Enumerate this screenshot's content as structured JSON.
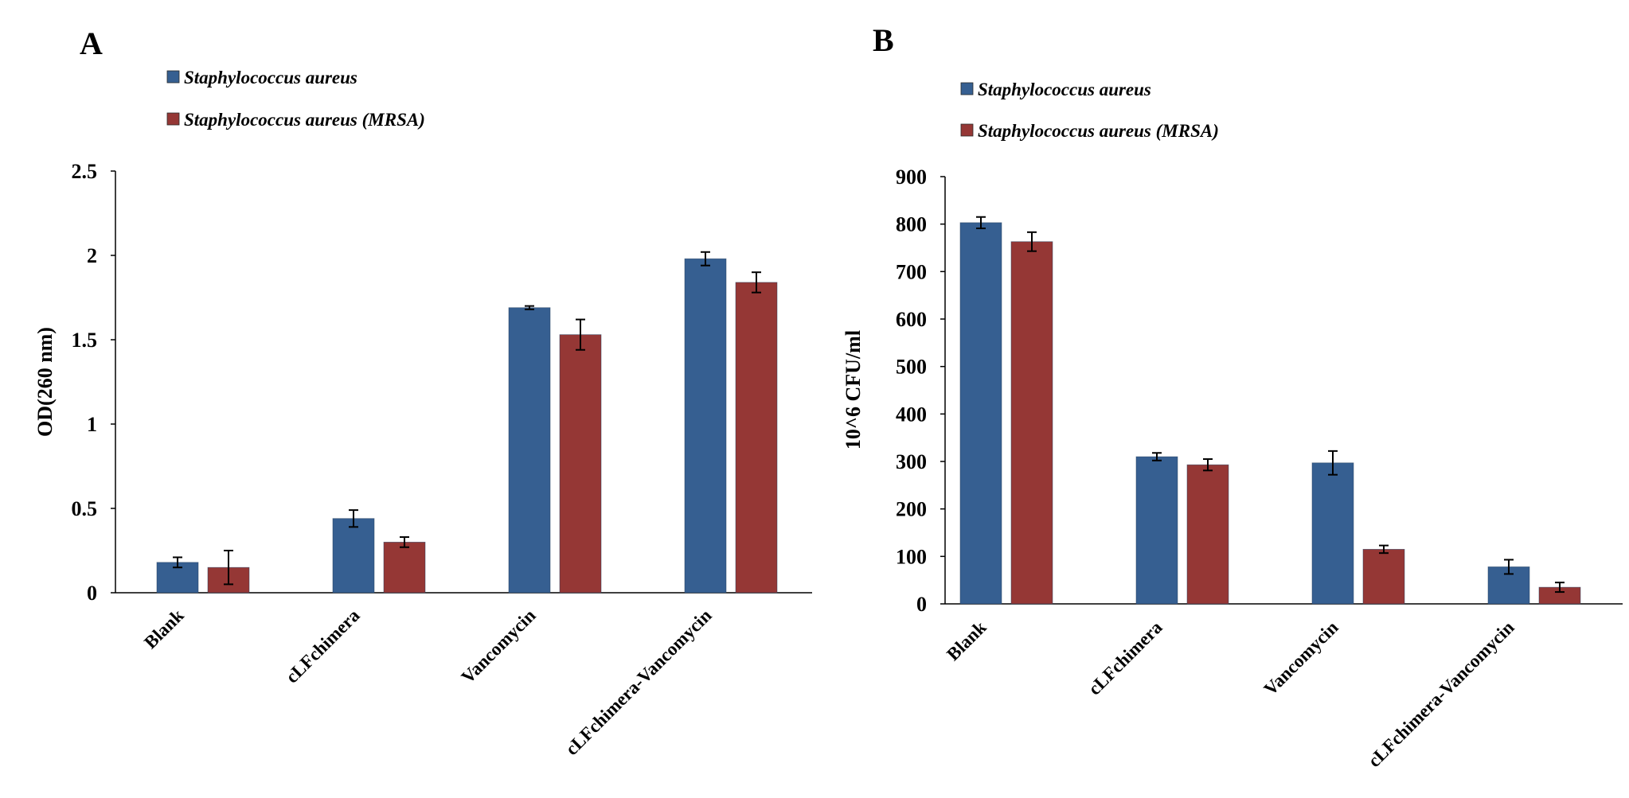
{
  "chart_data": [
    {
      "type": "bar",
      "panel": "A",
      "title": "",
      "xlabel": "",
      "ylabel": "OD(260 nm)",
      "ylim": [
        0,
        2.5
      ],
      "yticks": [
        {
          "value": 0,
          "label": "0"
        },
        {
          "value": 0.5,
          "label": "0.5"
        },
        {
          "value": 1,
          "label": "1"
        },
        {
          "value": 1.5,
          "label": "1.5"
        },
        {
          "value": 2,
          "label": "2"
        },
        {
          "value": 2.5,
          "label": "2.5"
        }
      ],
      "grid": false,
      "legend": "top-left",
      "categories": [
        "Blank",
        "cLFchimera",
        "Vancomycin",
        "cLFchimera-Vancomycin"
      ],
      "series": [
        {
          "name": "Staphylococcus aureus",
          "color": "#365F91",
          "values": [
            0.18,
            0.44,
            1.69,
            1.98
          ],
          "errors": [
            0.03,
            0.05,
            0.01,
            0.04
          ]
        },
        {
          "name": "Staphylococcus aureus  (MRSA)",
          "color": "#953735",
          "values": [
            0.15,
            0.3,
            1.53,
            1.84
          ],
          "errors": [
            0.1,
            0.03,
            0.09,
            0.06
          ]
        }
      ]
    },
    {
      "type": "bar",
      "panel": "B",
      "title": "",
      "xlabel": "",
      "ylabel": "10^6 CFU/ml",
      "ylim": [
        0,
        900
      ],
      "yticks": [
        {
          "value": 0,
          "label": "0"
        },
        {
          "value": 100,
          "label": "100"
        },
        {
          "value": 200,
          "label": "200"
        },
        {
          "value": 300,
          "label": "300"
        },
        {
          "value": 400,
          "label": "400"
        },
        {
          "value": 500,
          "label": "500"
        },
        {
          "value": 600,
          "label": "600"
        },
        {
          "value": 700,
          "label": "700"
        },
        {
          "value": 800,
          "label": "800"
        },
        {
          "value": 900,
          "label": "900"
        }
      ],
      "grid": false,
      "legend": "top-left",
      "categories": [
        "Blank",
        "cLFchimera",
        "Vancomycin",
        "cLFchimera-Vancomycin"
      ],
      "series": [
        {
          "name": "Staphylococcus aureus",
          "color": "#365F91",
          "values": [
            803,
            310,
            297,
            78
          ],
          "errors": [
            12,
            8,
            25,
            15
          ]
        },
        {
          "name": "Staphylococcus aureus  (MRSA)",
          "color": "#953735",
          "values": [
            763,
            293,
            115,
            35
          ],
          "errors": [
            20,
            12,
            8,
            10
          ]
        }
      ]
    }
  ]
}
